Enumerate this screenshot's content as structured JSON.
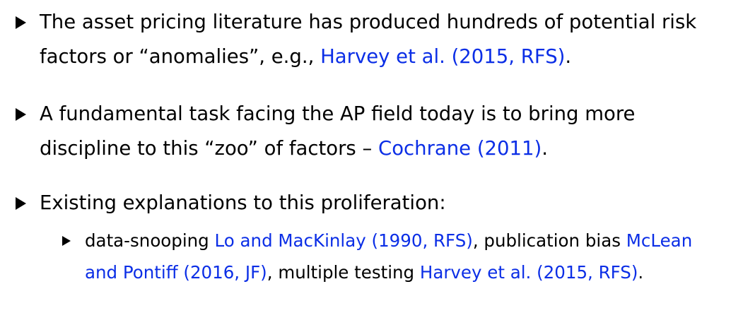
{
  "colors": {
    "text": "#000000",
    "citation": "#0b2ee6",
    "background": "#ffffff"
  },
  "bullets": [
    {
      "text_a": "The asset pricing literature has produced hundreds of potential risk factors or “anomalies”, e.g., ",
      "cite_a": "Harvey et al. (2015, RFS)",
      "text_b": "."
    },
    {
      "text_a": "A fundamental task facing the AP field today is to bring more discipline to this “zoo” of factors – ",
      "cite_a": "Cochrane (2011)",
      "text_b": "."
    },
    {
      "text_a": "Existing explanations to this proliferation:"
    }
  ],
  "sub_bullet": {
    "text_a": "data-snooping ",
    "cite_a": "Lo and MacKinlay (1990, RFS)",
    "text_b": ", publication bias ",
    "cite_b": "McLean and Pontiff (2016, JF)",
    "text_c": ", multiple testing ",
    "cite_c": "Harvey et al. (2015, RFS)",
    "text_d": "."
  }
}
